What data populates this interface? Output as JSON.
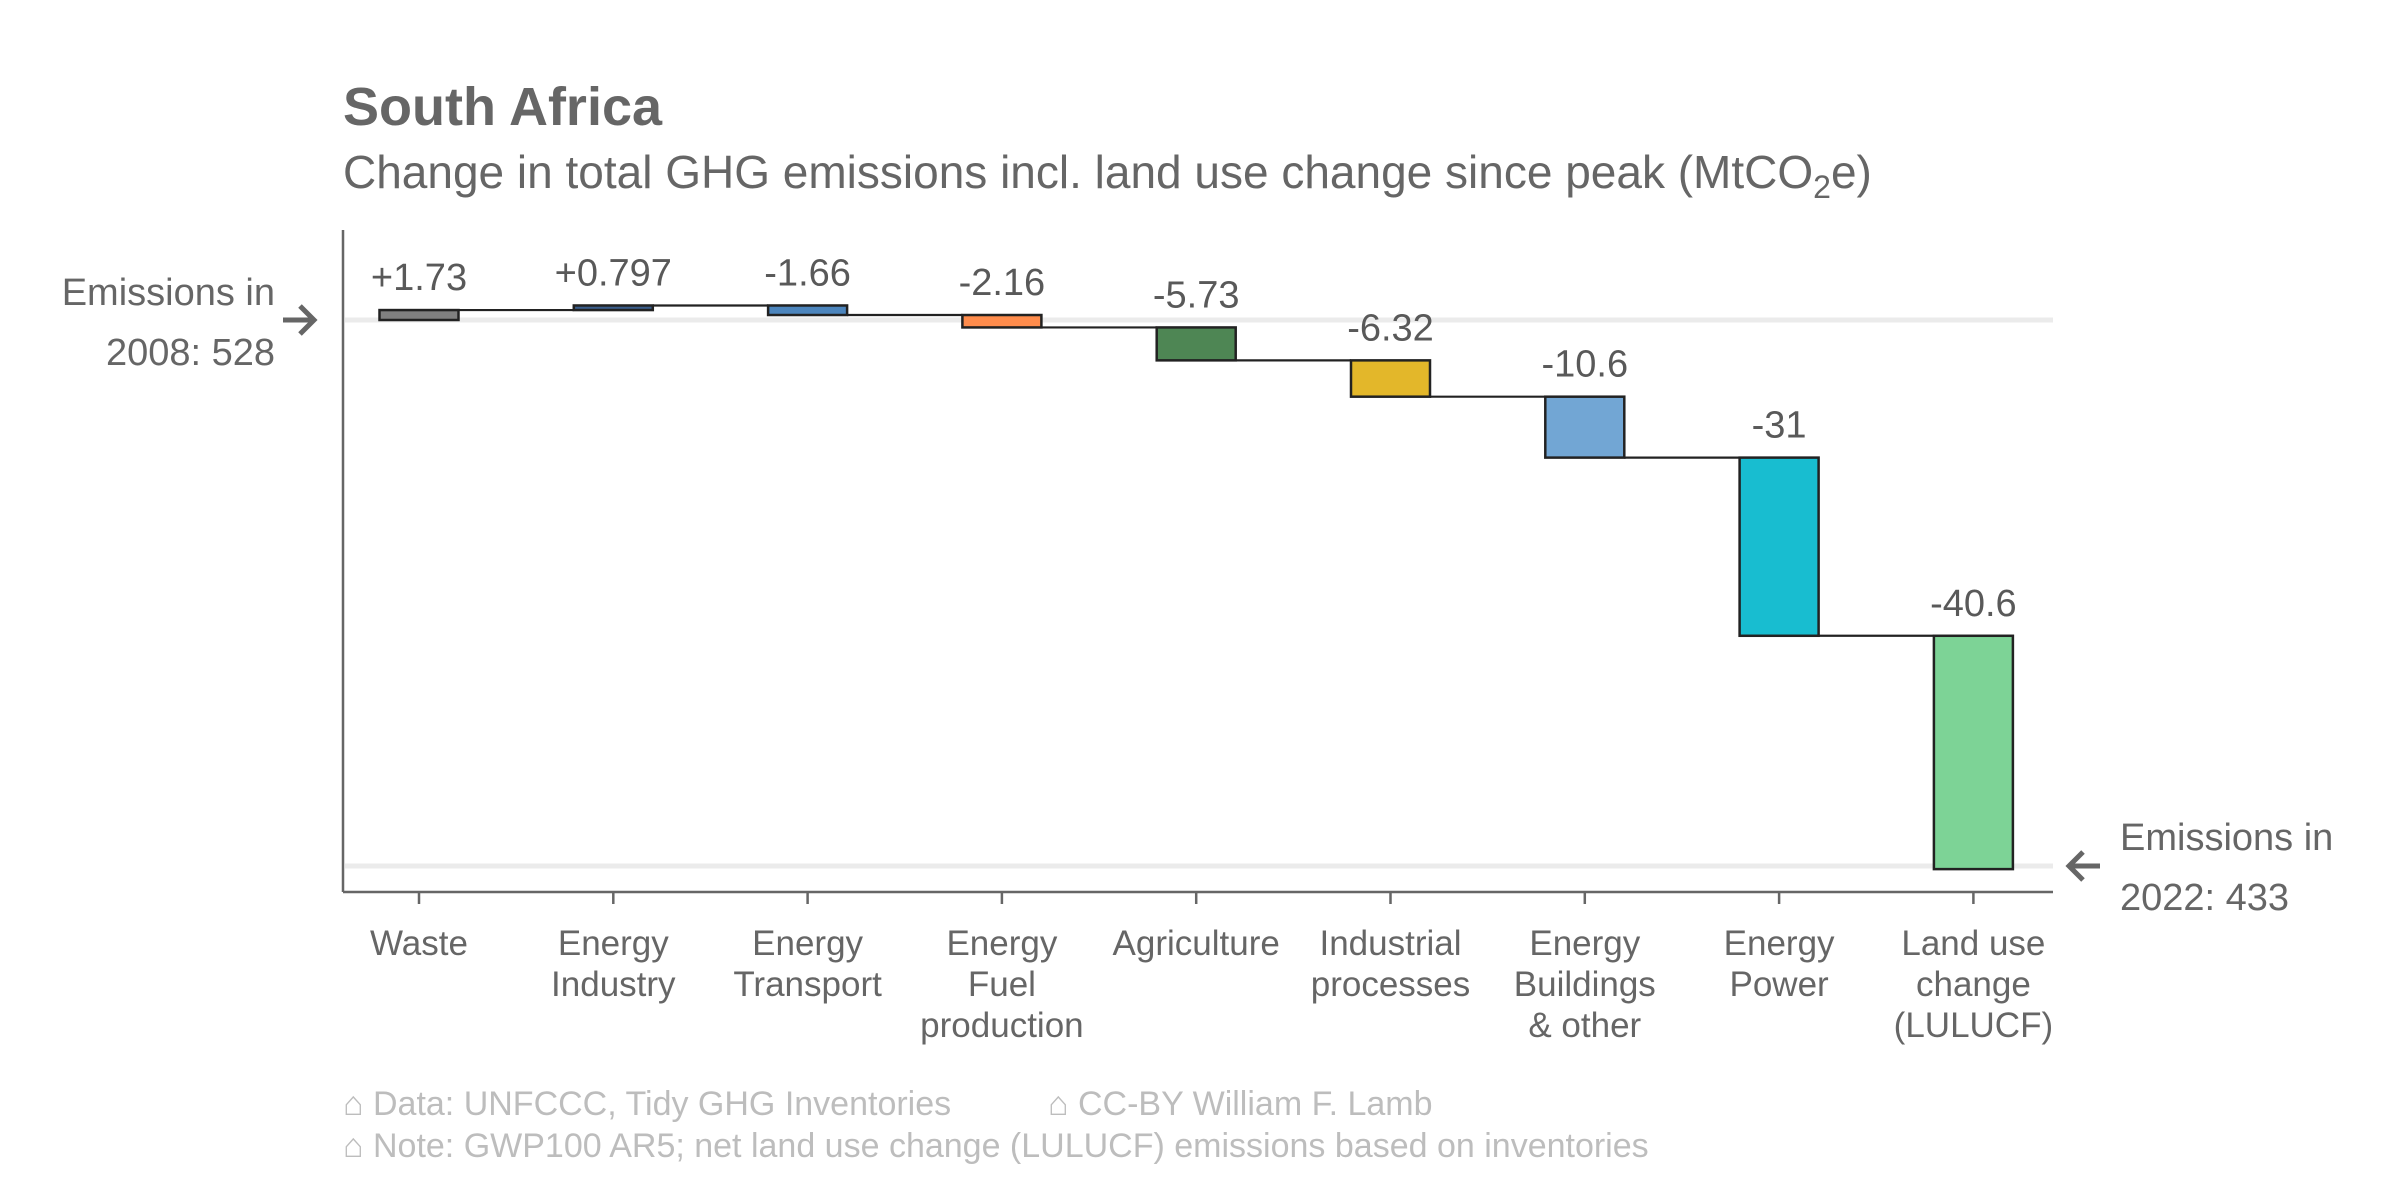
{
  "chart_data": {
    "type": "waterfall",
    "title": "South Africa",
    "subtitle_main": "Change in total GHG emissions incl. land use change since peak (MtCO",
    "subtitle_sub": "2",
    "subtitle_end": "e)",
    "start": {
      "year": 2008,
      "value": 528,
      "label_line1": "Emissions in",
      "label_line2": "2008: 528"
    },
    "end": {
      "year": 2022,
      "value": 433,
      "label_line1": "Emissions in",
      "label_line2": "2022: 433"
    },
    "categories": [
      {
        "label_lines": [
          "Waste"
        ],
        "value": 1.73,
        "value_label": "+1.73",
        "color": "#808080"
      },
      {
        "label_lines": [
          "Energy",
          "Industry"
        ],
        "value": 0.797,
        "value_label": "+0.797",
        "color": "#3a5e8c"
      },
      {
        "label_lines": [
          "Energy",
          "Transport"
        ],
        "value": -1.66,
        "value_label": "-1.66",
        "color": "#4c85bd"
      },
      {
        "label_lines": [
          "Energy",
          "Fuel",
          "production"
        ],
        "value": -2.16,
        "value_label": "-2.16",
        "color": "#ff8c4c"
      },
      {
        "label_lines": [
          "Agriculture"
        ],
        "value": -5.73,
        "value_label": "-5.73",
        "color": "#4e8654"
      },
      {
        "label_lines": [
          "Industrial",
          "processes"
        ],
        "value": -6.32,
        "value_label": "-6.32",
        "color": "#e3b72a"
      },
      {
        "label_lines": [
          "Energy",
          "Buildings",
          "& other"
        ],
        "value": -10.6,
        "value_label": "-10.6",
        "color": "#72a6d4"
      },
      {
        "label_lines": [
          "Energy",
          "Power"
        ],
        "value": -31,
        "value_label": "-31",
        "color": "#18bdd0"
      },
      {
        "label_lines": [
          "Land use",
          "change",
          "(LULUCF)"
        ],
        "value": -40.6,
        "value_label": "-40.6",
        "color": "#7dd396"
      }
    ],
    "ylim": [
      430,
      538
    ],
    "gridlines": [
      528,
      433
    ],
    "xlabel": "",
    "ylabel": ""
  },
  "caption": {
    "line1_a": "⌂ Data: UNFCCC, Tidy GHG Inventories",
    "line1_b": "⌂ CC-BY William F. Lamb",
    "line2": "⌂ Note: GWP100 AR5; net land use change (LULUCF) emissions based on inventories"
  }
}
